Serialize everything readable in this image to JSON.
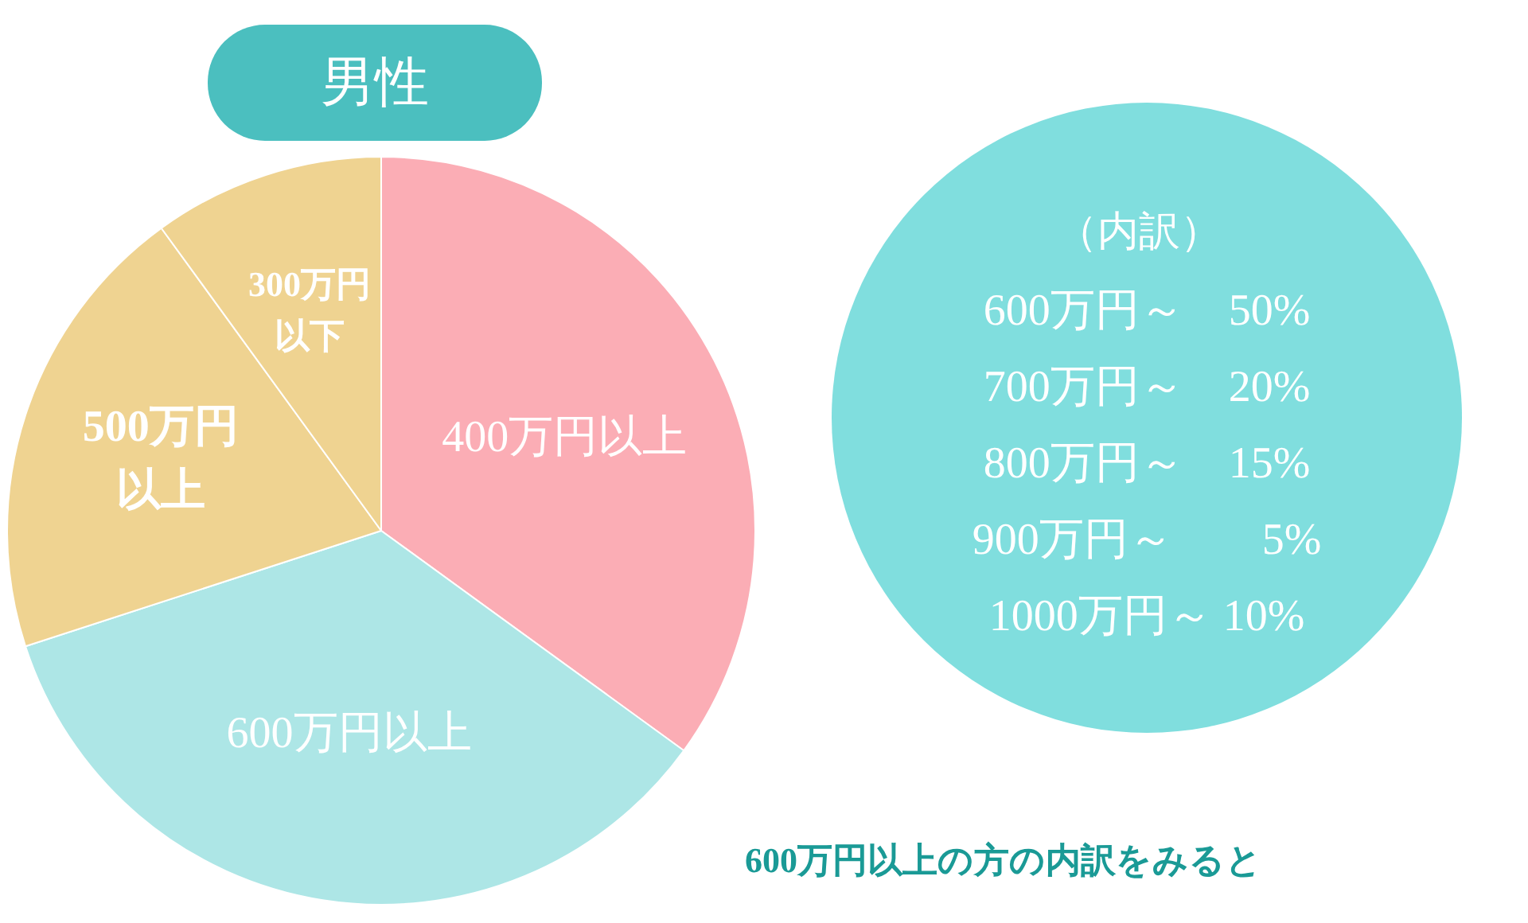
{
  "chart_data": {
    "type": "pie",
    "title": "男性",
    "categories": [
      "400万円以上",
      "600万円以上",
      "500万円以上",
      "300万円以下"
    ],
    "values": [
      35,
      35,
      20,
      10
    ],
    "colors": [
      "#fbadb5",
      "#ade6e6",
      "#efd391",
      "#efd391"
    ],
    "annotations": [
      "（内訳）",
      "600万円～　50%",
      "700万円～　20%",
      "800万円～　15%",
      "900万円～　　5%",
      "1000万円～ 10%",
      "600万円以上の方の内訳をみると"
    ]
  }
}
